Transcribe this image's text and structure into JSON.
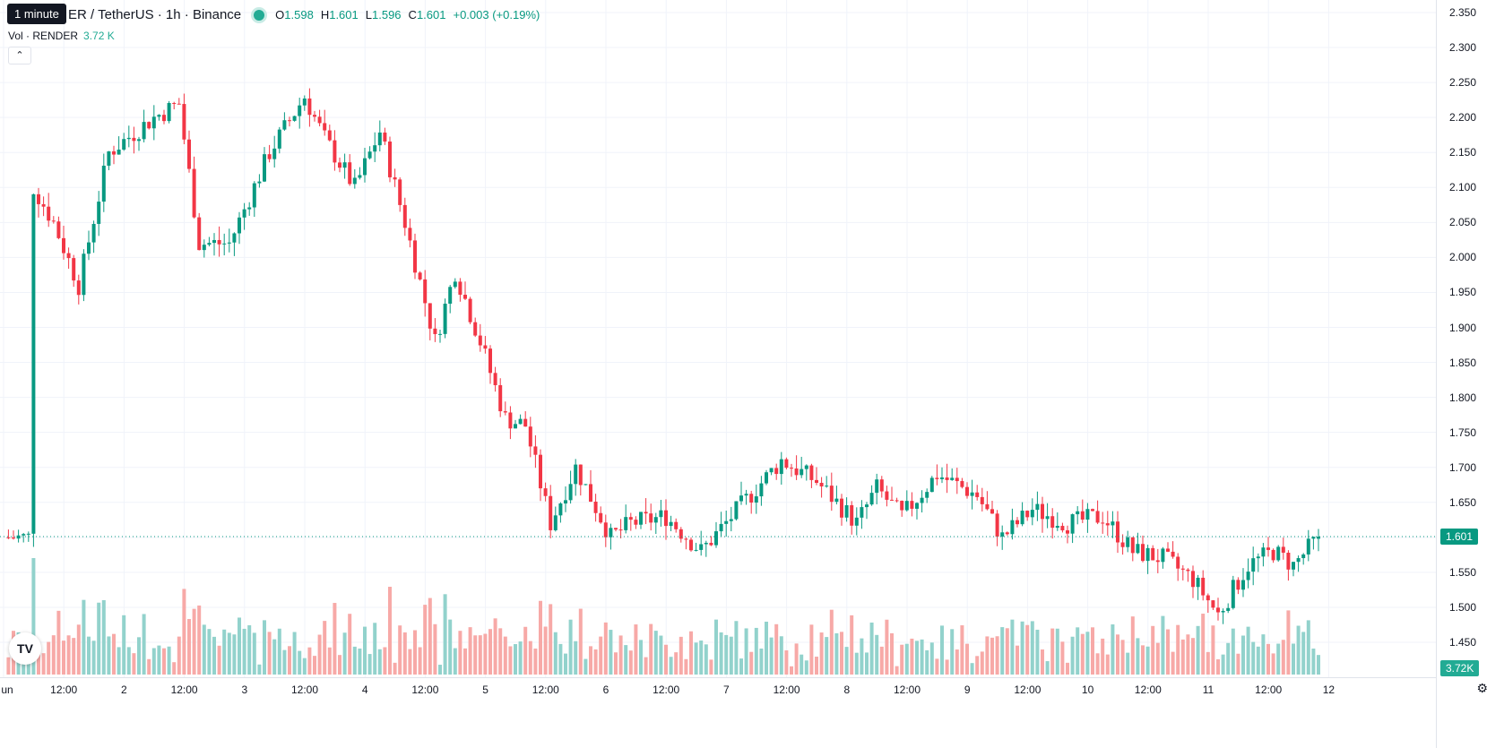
{
  "tooltip": "1 minute",
  "legend": {
    "symbol_visible": "ER / TetherUS · 1h · Binance",
    "open_label": "O",
    "open": "1.598",
    "high_label": "H",
    "high": "1.601",
    "low_label": "L",
    "low": "1.596",
    "close_label": "C",
    "close": "1.601",
    "change": "+0.003 (+0.19%)"
  },
  "volume_legend": {
    "label": "Vol · RENDER",
    "value": "3.72 K"
  },
  "price_axis": {
    "labels": [
      "2.350",
      "2.300",
      "2.250",
      "2.200",
      "2.150",
      "2.100",
      "2.050",
      "2.000",
      "1.950",
      "1.900",
      "1.850",
      "1.800",
      "1.750",
      "1.700",
      "1.650",
      "1.600",
      "1.550",
      "1.500",
      "1.450"
    ],
    "current_price": "1.601",
    "volume_value": "3.72K"
  },
  "time_axis": {
    "labels": [
      "un",
      "12:00",
      "2",
      "12:00",
      "3",
      "12:00",
      "4",
      "12:00",
      "5",
      "12:00",
      "6",
      "12:00",
      "7",
      "12:00",
      "8",
      "12:00",
      "9",
      "12:00",
      "10",
      "12:00",
      "11",
      "12:00",
      "12"
    ]
  },
  "colors": {
    "up": "#089981",
    "down": "#f23645",
    "vol_up": "#92d2cc",
    "vol_down": "#f7a9a7",
    "grid": "#f0f3fa"
  },
  "icons": {
    "collapse": "chevron-up-icon",
    "logo": "tradingview-logo",
    "settings": "gear-icon"
  },
  "chart_data": {
    "type": "candlestick",
    "symbol": "RENDER / TetherUS",
    "interval": "1h",
    "exchange": "Binance",
    "ylim": [
      1.43,
      2.36
    ],
    "keypoints": [
      [
        "Jun 1 06:00",
        2.1
      ],
      [
        "Jun 1 10:00",
        2.05
      ],
      [
        "Jun 1 15:00",
        1.96
      ],
      [
        "Jun 1 21:00",
        2.15
      ],
      [
        "Jun 2 06:00",
        2.2
      ],
      [
        "Jun 2 11:00",
        2.22
      ],
      [
        "Jun 2 15:00",
        2.02
      ],
      [
        "Jun 2 21:00",
        2.02
      ],
      [
        "Jun 3 05:00",
        2.15
      ],
      [
        "Jun 3 12:00",
        2.23
      ],
      [
        "Jun 3 16:00",
        2.17
      ],
      [
        "Jun 3 22:00",
        2.1
      ],
      [
        "Jun 4 03:00",
        2.18
      ],
      [
        "Jun 4 08:00",
        2.05
      ],
      [
        "Jun 4 14:00",
        1.88
      ],
      [
        "Jun 4 18:00",
        1.98
      ],
      [
        "Jun 4 23:00",
        1.88
      ],
      [
        "Jun 5 04:00",
        1.77
      ],
      [
        "Jun 5 08:00",
        1.76
      ],
      [
        "Jun 5 13:00",
        1.62
      ],
      [
        "Jun 5 18:00",
        1.7
      ],
      [
        "Jun 6 01:00",
        1.6
      ],
      [
        "Jun 6 05:00",
        1.62
      ],
      [
        "Jun 6 12:00",
        1.63
      ],
      [
        "Jun 6 19:00",
        1.58
      ],
      [
        "Jun 7 06:00",
        1.67
      ],
      [
        "Jun 7 11:00",
        1.71
      ],
      [
        "Jun 7 18:00",
        1.68
      ],
      [
        "Jun 8 02:00",
        1.62
      ],
      [
        "Jun 8 06:00",
        1.67
      ],
      [
        "Jun 8 11:00",
        1.63
      ],
      [
        "Jun 8 18:00",
        1.69
      ],
      [
        "Jun 9 02:00",
        1.66
      ],
      [
        "Jun 9 07:00",
        1.6
      ],
      [
        "Jun 9 13:00",
        1.64
      ],
      [
        "Jun 9 20:00",
        1.62
      ],
      [
        "Jun 10 03:00",
        1.63
      ],
      [
        "Jun 10 09:00",
        1.58
      ],
      [
        "Jun 10 15:00",
        1.57
      ],
      [
        "Jun 10 21:00",
        1.54
      ],
      [
        "Jun 11 02:00",
        1.49
      ],
      [
        "Jun 11 08:00",
        1.56
      ],
      [
        "Jun 11 13:00",
        1.58
      ],
      [
        "Jun 11 17:00",
        1.56
      ],
      [
        "Jun 11 22:00",
        1.6
      ]
    ],
    "last_candle": {
      "open": 1.598,
      "high": 1.601,
      "low": 1.596,
      "close": 1.601
    },
    "volume_last": "3.72K",
    "grid": true
  }
}
